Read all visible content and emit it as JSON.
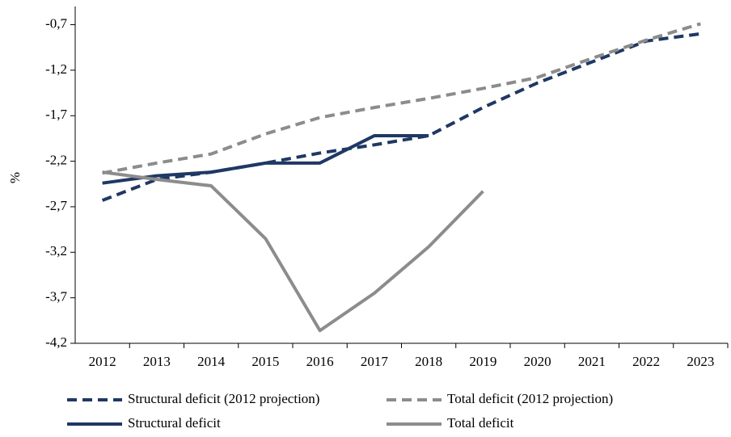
{
  "chart_data": {
    "type": "line",
    "y_label": "%",
    "categories": [
      "2012",
      "2013",
      "2014",
      "2015",
      "2016",
      "2017",
      "2018",
      "2019",
      "2020",
      "2021",
      "2022",
      "2023"
    ],
    "series": [
      {
        "name": "Structural deficit (2012 projection)",
        "color": "#1f3864",
        "dash": true,
        "values": [
          -2.63,
          -2.4,
          -2.32,
          -2.22,
          -2.11,
          -2.02,
          -1.92,
          -1.61,
          -1.34,
          -1.11,
          -0.88,
          -0.8
        ]
      },
      {
        "name": "Total deficit (2012 projection)",
        "color": "#8c8c8c",
        "dash": true,
        "values": [
          -2.33,
          -2.22,
          -2.12,
          -1.9,
          -1.72,
          -1.61,
          -1.51,
          -1.4,
          -1.28,
          -1.07,
          -0.87,
          -0.69
        ]
      },
      {
        "name": "Structural deficit",
        "color": "#1f3864",
        "dash": false,
        "values": [
          -2.44,
          -2.36,
          -2.32,
          -2.22,
          -2.22,
          -1.92,
          -1.92,
          null,
          null,
          null,
          null,
          null
        ]
      },
      {
        "name": "Total deficit",
        "color": "#8c8c8c",
        "dash": false,
        "values": [
          -2.32,
          -2.4,
          -2.47,
          -3.05,
          -4.06,
          -3.65,
          -3.14,
          -2.53,
          null,
          null,
          null,
          null
        ]
      }
    ],
    "ylim": [
      -4.2,
      -0.5
    ],
    "yticks": [
      {
        "value": -0.7,
        "label": "-0,7"
      },
      {
        "value": -1.2,
        "label": "-1,2"
      },
      {
        "value": -1.7,
        "label": "-1,7"
      },
      {
        "value": -2.2,
        "label": "-2,2"
      },
      {
        "value": -2.7,
        "label": "-2,7"
      },
      {
        "value": -3.2,
        "label": "-3,2"
      },
      {
        "value": -3.7,
        "label": "-3,7"
      },
      {
        "value": -4.2,
        "label": "-4,2"
      }
    ]
  }
}
